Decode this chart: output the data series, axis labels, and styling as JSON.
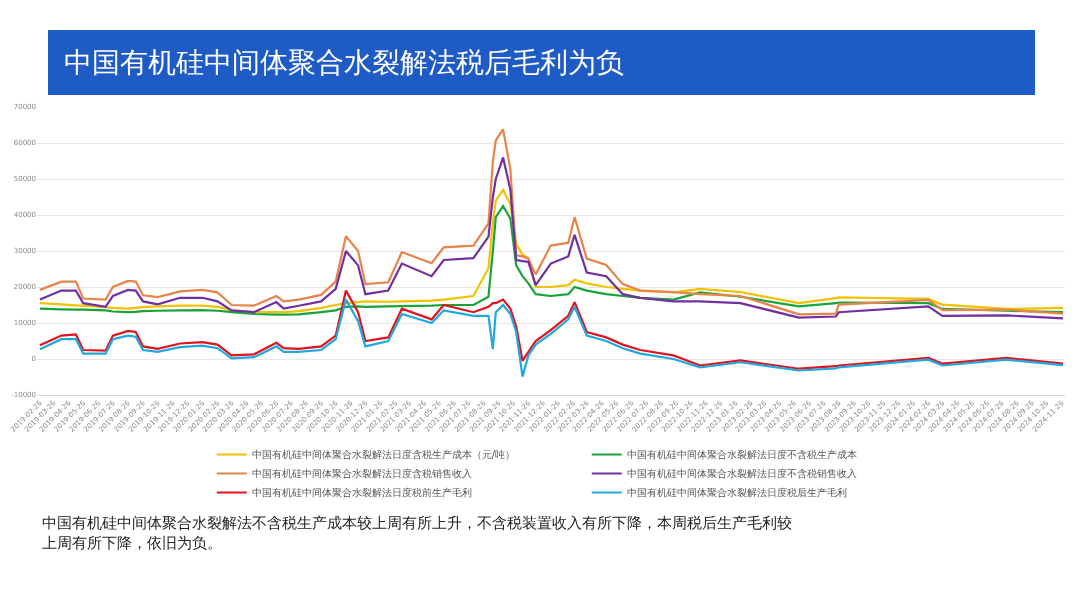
{
  "chart_data": {
    "type": "line",
    "title": "中国有机硅中间体聚合水裂解法税后毛利为负",
    "annotations": [
      "中国有机硅中间体聚合水裂解法不含税生产成本较上周有所上升，不含税装置收入有所下降，本周税后生产毛利较上周有所下降，依旧为负。"
    ],
    "x": [
      "2019-02-26",
      "2019-04-11",
      "2019-05-11",
      "2019-05-26",
      "2019-07-11",
      "2019-07-26",
      "2019-08-26",
      "2019-09-11",
      "2019-09-26",
      "2019-10-26",
      "2019-12-11",
      "2020-01-26",
      "2020-02-26",
      "2020-03-26",
      "2020-05-11",
      "2020-06-26",
      "2020-07-11",
      "2020-08-11",
      "2020-09-26",
      "2020-10-26",
      "2020-11-16",
      "2020-12-11",
      "2020-12-26",
      "2021-02-11",
      "2021-03-11",
      "2021-05-11",
      "2021-06-05",
      "2021-08-05",
      "2021-09-05",
      "2021-09-14",
      "2021-09-20",
      "2021-10-05",
      "2021-10-20",
      "2021-11-01",
      "2021-11-14",
      "2021-11-26",
      "2021-12-11",
      "2022-01-11",
      "2022-02-16",
      "2022-03-01",
      "2022-03-26",
      "2022-05-05",
      "2022-06-08",
      "2022-07-14",
      "2022-09-20",
      "2022-11-14",
      "2023-02-05",
      "2023-06-05",
      "2023-08-20",
      "2023-08-26",
      "2024-02-26",
      "2024-03-26",
      "2024-08-05",
      "2024-11-29"
    ],
    "series": [
      {
        "name": "中国有机硅中间体聚合水裂解法日度含税生产成本（元/吨）",
        "color": "#f2c200",
        "values": [
          15500,
          15200,
          14900,
          14800,
          14400,
          14200,
          14000,
          14200,
          14400,
          14600,
          14800,
          14800,
          14500,
          13500,
          13000,
          13000,
          13000,
          13300,
          14200,
          15000,
          15500,
          15800,
          16000,
          15900,
          16000,
          16200,
          16500,
          17500,
          25200,
          38000,
          44000,
          47000,
          43000,
          32000,
          29000,
          28000,
          20000,
          20000,
          20500,
          22000,
          21000,
          20000,
          19500,
          19000,
          18500,
          19500,
          18600,
          15500,
          16900,
          17100,
          16700,
          15100,
          13900,
          14200
        ]
      },
      {
        "name": "中国有机硅中间体聚合水裂解法日度不含税生产成本",
        "color": "#1aa33a",
        "values": [
          14000,
          13800,
          13700,
          13700,
          13500,
          13200,
          13000,
          13100,
          13300,
          13400,
          13500,
          13600,
          13400,
          13000,
          12500,
          12300,
          12300,
          12400,
          13000,
          13500,
          14500,
          14600,
          14500,
          14600,
          14700,
          14800,
          15000,
          15000,
          17300,
          30000,
          39400,
          42500,
          39000,
          26000,
          23000,
          21000,
          18000,
          17500,
          18000,
          20000,
          19000,
          18000,
          17500,
          17000,
          16500,
          18500,
          17300,
          14600,
          15500,
          15700,
          15500,
          13900,
          13400,
          13000
        ]
      },
      {
        "name": "中国有机硅中间体聚合水裂解法日度含税销售收入",
        "color": "#e8834a",
        "values": [
          19200,
          21500,
          21500,
          16800,
          16500,
          20000,
          21700,
          21500,
          17700,
          17200,
          18800,
          19200,
          18500,
          15000,
          14800,
          17500,
          16000,
          16500,
          17800,
          21500,
          34100,
          30000,
          20800,
          21300,
          29700,
          26600,
          31000,
          31500,
          37700,
          55000,
          60700,
          63800,
          52700,
          28800,
          28500,
          27900,
          23500,
          31500,
          32300,
          39400,
          27900,
          26100,
          20800,
          19000,
          18600,
          18000,
          17500,
          12400,
          12600,
          15100,
          16400,
          13600,
          13700,
          12600
        ]
      },
      {
        "name": "中国有机硅中间体聚合水裂解法日度不含税销售收入",
        "color": "#7030a0",
        "values": [
          16500,
          19000,
          19000,
          15500,
          14500,
          17500,
          19200,
          19000,
          16000,
          15200,
          17000,
          17000,
          16000,
          13500,
          13000,
          15800,
          14000,
          14800,
          16000,
          19500,
          30000,
          26000,
          18000,
          19000,
          26500,
          23000,
          27500,
          28000,
          34000,
          45000,
          50000,
          56000,
          47000,
          27500,
          27200,
          27000,
          20500,
          26500,
          28500,
          34500,
          24000,
          23000,
          18000,
          17000,
          16000,
          16000,
          15500,
          11500,
          11800,
          13000,
          14600,
          12000,
          12100,
          11300
        ]
      },
      {
        "name": "中国有机硅中间体聚合水裂解法日度税前生产毛利",
        "color": "#e0141e",
        "values": [
          3800,
          6500,
          6800,
          2500,
          2300,
          6500,
          7800,
          7500,
          3500,
          2800,
          4300,
          4700,
          4000,
          1000,
          1300,
          4500,
          3000,
          2800,
          3500,
          6500,
          19000,
          13000,
          5000,
          6000,
          14000,
          11000,
          15000,
          13000,
          14500,
          15500,
          15500,
          16500,
          14000,
          9000,
          -500,
          2000,
          5000,
          8000,
          12000,
          15800,
          7500,
          6000,
          4000,
          2500,
          1000,
          -1800,
          -400,
          -2700,
          -2000,
          -1800,
          300,
          -1300,
          300,
          -1300
        ]
      },
      {
        "name": "中国有机硅中间体聚合水裂解法日度税后生产毛利",
        "color": "#20a8e0",
        "values": [
          2700,
          5500,
          5500,
          1500,
          1500,
          5500,
          6500,
          6200,
          2500,
          2000,
          3300,
          3700,
          3000,
          200,
          500,
          3500,
          2000,
          2000,
          2500,
          5500,
          16500,
          10500,
          3500,
          5000,
          12500,
          10000,
          13500,
          12000,
          12000,
          2700,
          13000,
          15000,
          12500,
          7500,
          -4900,
          1000,
          4000,
          7000,
          11000,
          14500,
          6500,
          5000,
          3000,
          1500,
          0,
          -2300,
          -900,
          -3200,
          -2600,
          -2300,
          -200,
          -1800,
          -200,
          -1700
        ]
      }
    ],
    "xlim": [
      "2019-02-20",
      "2024-12-03"
    ],
    "xticks": [
      "2019-02-26",
      "2019-03-26",
      "2019-04-26",
      "2019-05-26",
      "2019-06-26",
      "2019-07-26",
      "2019-08-26",
      "2019-09-26",
      "2019-10-26",
      "2019-11-26",
      "2019-12-26",
      "2020-01-26",
      "2020-02-26",
      "2020-03-26",
      "2020-04-26",
      "2020-05-26",
      "2020-06-26",
      "2020-07-26",
      "2020-08-26",
      "2020-09-26",
      "2020-10-26",
      "2020-11-26",
      "2020-12-26",
      "2021-01-26",
      "2021-02-26",
      "2021-03-26",
      "2021-04-26",
      "2021-05-26",
      "2021-06-26",
      "2021-07-26",
      "2021-08-26",
      "2021-09-26",
      "2021-10-26",
      "2021-11-26",
      "2021-12-26",
      "2022-01-26",
      "2022-02-26",
      "2022-03-26",
      "2022-04-26",
      "2022-05-26",
      "2022-06-26",
      "2022-07-26",
      "2022-08-26",
      "2022-09-26",
      "2022-10-26",
      "2022-11-26",
      "2022-12-26",
      "2023-01-26",
      "2023-02-26",
      "2023-03-26",
      "2023-04-26",
      "2023-05-26",
      "2023-06-26",
      "2023-07-26",
      "2023-08-26",
      "2023-09-26",
      "2023-10-26",
      "2023-11-26",
      "2023-12-26",
      "2024-01-26",
      "2024-02-26",
      "2024-03-26",
      "2024-04-26",
      "2024-05-26",
      "2024-06-26",
      "2024-07-26",
      "2024-08-26",
      "2024-09-26",
      "2024-10-26",
      "2024-11-26"
    ],
    "ylim": [
      -10000,
      70000
    ],
    "yticks": [
      -10000,
      0,
      10000,
      20000,
      30000,
      40000,
      50000,
      60000,
      70000
    ],
    "grid": "y",
    "legend": "bottom",
    "line_style": "solid",
    "marker": "none"
  }
}
